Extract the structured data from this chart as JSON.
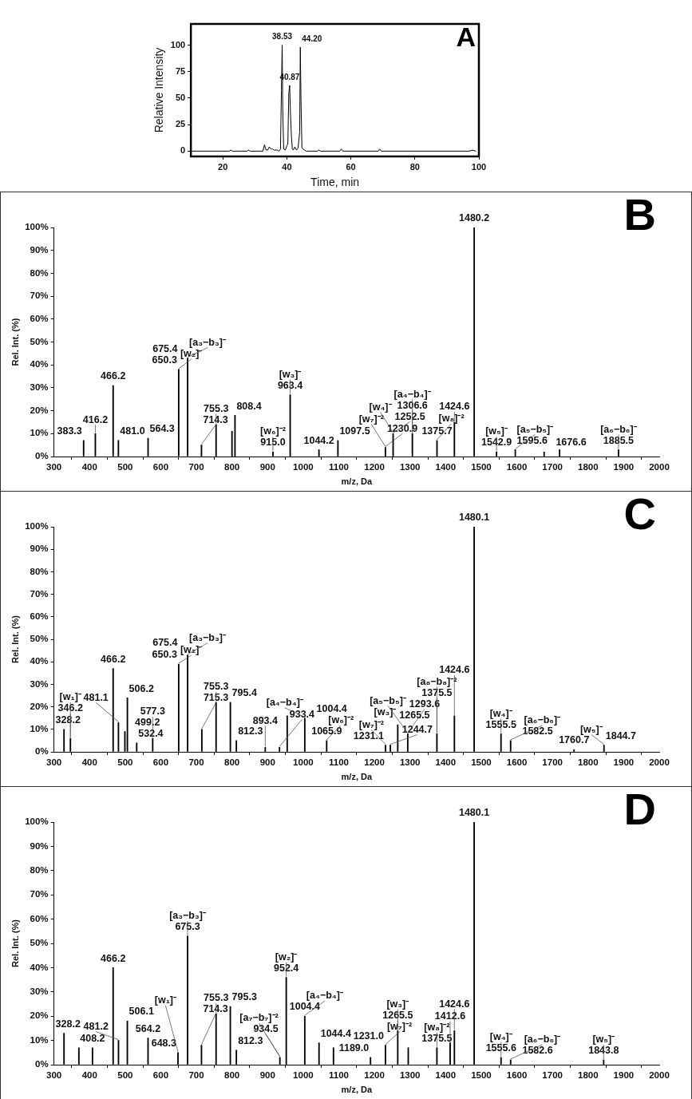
{
  "chart_data": [
    {
      "type": "line",
      "title": "A",
      "xlabel": "Time, min",
      "ylabel": "Relative Intensity",
      "color": "#000000",
      "grid": false,
      "x": [
        10,
        22,
        22.5,
        23,
        27.5,
        28,
        28.5,
        32.5,
        33,
        33.5,
        34,
        34.5,
        35,
        35.5,
        36,
        37,
        37.5,
        38,
        38.3,
        38.53,
        38.7,
        39,
        39.5,
        40,
        40.3,
        40.6,
        40.87,
        41.1,
        41.4,
        41.7,
        42,
        42.5,
        43,
        43.5,
        44,
        44.2,
        44.4,
        44.7,
        45.5,
        46,
        49.5,
        50,
        50.5,
        56.5,
        57,
        57.5,
        68.5,
        69,
        69.5,
        97,
        98,
        99
      ],
      "values": [
        0,
        0,
        1,
        0,
        0,
        1,
        0,
        0,
        6,
        1,
        1,
        4,
        2,
        2,
        1,
        1,
        0,
        2,
        58,
        100,
        40,
        2,
        1,
        5,
        7,
        55,
        62,
        37,
        15,
        2,
        1,
        4,
        1,
        3,
        18,
        98,
        50,
        3,
        1,
        0,
        0,
        1,
        0,
        0,
        2,
        0,
        0,
        2,
        0,
        0,
        1,
        0
      ],
      "xlim": [
        10,
        100
      ],
      "xticks": [
        20,
        40,
        60,
        80,
        100
      ],
      "ylim": [
        -5,
        120
      ],
      "yticks": [
        0,
        25,
        50,
        75,
        100
      ],
      "annotations": [
        {
          "text": "38.53",
          "x": 38.53,
          "y": 100
        },
        {
          "text": "40.87",
          "x": 40.87,
          "y": 62
        },
        {
          "text": "44.20",
          "x": 44.2,
          "y": 98
        }
      ]
    },
    {
      "type": "bar",
      "title": "B",
      "xlabel": "m/z, Da",
      "ylabel": "Rel. Int. (%)",
      "grid": false,
      "color": "#000000",
      "x": [
        383.3,
        416.2,
        466.2,
        481.0,
        564.3,
        650.3,
        675.4,
        714.3,
        755.3,
        800,
        808.4,
        915.0,
        963.4,
        1044.2,
        1097.5,
        1230.9,
        1252.5,
        1306.6,
        1375.7,
        1424.6,
        1480.2,
        1542.9,
        1595.6,
        1676.6,
        1720,
        1885.5
      ],
      "values": [
        7,
        10,
        31,
        7,
        8,
        38,
        43,
        5,
        14,
        11,
        18,
        2,
        27,
        3,
        7,
        4,
        10,
        10,
        7,
        15,
        100,
        2,
        3,
        2,
        3,
        3
      ],
      "xlim": [
        300,
        2000
      ],
      "xticks": [
        300,
        400,
        500,
        600,
        700,
        800,
        900,
        1000,
        1100,
        1200,
        1300,
        1400,
        1500,
        1600,
        1700,
        1800,
        1900,
        2000
      ],
      "ylim": [
        0,
        100
      ],
      "yticks": [
        {
          "value": 0,
          "label": "0%"
        },
        {
          "value": 10,
          "label": "10%"
        },
        {
          "value": 20,
          "label": "20%"
        },
        {
          "value": 30,
          "label": "30%"
        },
        {
          "value": 40,
          "label": "40%"
        },
        {
          "value": 50,
          "label": "50%"
        },
        {
          "value": 60,
          "label": "60%"
        },
        {
          "value": 70,
          "label": "70%"
        },
        {
          "value": 80,
          "label": "80%"
        },
        {
          "value": 90,
          "label": "90%"
        },
        {
          "value": 100,
          "label": "100%"
        }
      ],
      "annotations": [
        {
          "text": "383.3",
          "x": 383.3,
          "y": 7
        },
        {
          "text": "416.2",
          "x": 416.2,
          "y": 10
        },
        {
          "text": "466.2",
          "x": 466.2,
          "y": 31
        },
        {
          "text": "481.0",
          "x": 481.0,
          "y": 7
        },
        {
          "text": "564.3",
          "x": 564.3,
          "y": 8
        },
        {
          "text": "650.3",
          "x": 650.3,
          "y": 38
        },
        {
          "text": "675.4",
          "x": 675.4,
          "y": 43
        },
        {
          "text": "714.3",
          "x": 714.3,
          "y": 5
        },
        {
          "text": "755.3",
          "x": 755.3,
          "y": 14
        },
        {
          "text": "808.4",
          "x": 808.4,
          "y": 18
        },
        {
          "text": "915.0",
          "x": 915.0,
          "y": 2
        },
        {
          "text": "963.4",
          "x": 963.4,
          "y": 27
        },
        {
          "text": "1044.2",
          "x": 1044.2,
          "y": 3
        },
        {
          "text": "1097.5",
          "x": 1097.5,
          "y": 7
        },
        {
          "text": "1230.9",
          "x": 1230.9,
          "y": 4
        },
        {
          "text": "1252.5",
          "x": 1252.5,
          "y": 10
        },
        {
          "text": "1306.6",
          "x": 1306.6,
          "y": 10
        },
        {
          "text": "1375.7",
          "x": 1375.7,
          "y": 7
        },
        {
          "text": "1424.6",
          "x": 1424.6,
          "y": 15
        },
        {
          "text": "1480.2",
          "x": 1480.2,
          "y": 100
        },
        {
          "text": "1542.9",
          "x": 1542.9,
          "y": 2
        },
        {
          "text": "1595.6",
          "x": 1595.6,
          "y": 3
        },
        {
          "text": "1676.6",
          "x": 1676.6,
          "y": 2
        },
        {
          "text": "1885.5",
          "x": 1885.5,
          "y": 3
        },
        {
          "text": "[w₂]⁻",
          "x": 650.3,
          "y": 38
        },
        {
          "text": "[a₃−b₃]⁻",
          "x": 675.4,
          "y": 43
        },
        {
          "text": "[w₆]⁻²",
          "x": 915.0,
          "y": 2
        },
        {
          "text": "[w₃]⁻",
          "x": 963.4,
          "y": 27
        },
        {
          "text": "[w₇]⁻²",
          "x": 1230.9,
          "y": 4
        },
        {
          "text": "[w₄]⁻",
          "x": 1252.5,
          "y": 10
        },
        {
          "text": "[a₄−b₄]⁻",
          "x": 1306.6,
          "y": 10
        },
        {
          "text": "[w₈]⁻²",
          "x": 1375.7,
          "y": 7
        },
        {
          "text": "[w₅]⁻",
          "x": 1542.9,
          "y": 2
        },
        {
          "text": "[a₅−b₅]⁻",
          "x": 1595.6,
          "y": 3
        },
        {
          "text": "[a₆−b₆]⁻",
          "x": 1885.5,
          "y": 3
        }
      ]
    },
    {
      "type": "bar",
      "title": "C",
      "xlabel": "m/z, Da",
      "ylabel": "Rel. Int. (%)",
      "grid": false,
      "color": "#000000",
      "x": [
        328.2,
        346.2,
        466.2,
        481.1,
        499.2,
        506.2,
        532.4,
        577.3,
        650.3,
        675.4,
        715.3,
        755.3,
        795.4,
        812.3,
        893.4,
        933.4,
        955,
        1004.4,
        1065.9,
        1231.1,
        1244.7,
        1265.5,
        1293.6,
        1375.5,
        1424.6,
        1480.1,
        1555.5,
        1582.5,
        1760.7,
        1844.7
      ],
      "values": [
        10,
        6,
        37,
        13,
        9,
        24,
        4,
        6,
        39,
        43,
        10,
        22,
        22,
        5,
        2,
        2,
        16,
        15,
        5,
        3,
        3,
        12,
        8,
        8,
        16,
        100,
        8,
        5,
        1,
        3
      ],
      "xlim": [
        300,
        2000
      ],
      "xticks": [
        300,
        400,
        500,
        600,
        700,
        800,
        900,
        1000,
        1100,
        1200,
        1300,
        1400,
        1500,
        1600,
        1700,
        1800,
        1900,
        2000
      ],
      "ylim": [
        0,
        100
      ],
      "yticks": [
        {
          "value": 0,
          "label": "0%"
        },
        {
          "value": 10,
          "label": "10%"
        },
        {
          "value": 20,
          "label": "20%"
        },
        {
          "value": 30,
          "label": "30%"
        },
        {
          "value": 40,
          "label": "40%"
        },
        {
          "value": 50,
          "label": "50%"
        },
        {
          "value": 60,
          "label": "60%"
        },
        {
          "value": 70,
          "label": "70%"
        },
        {
          "value": 80,
          "label": "80%"
        },
        {
          "value": 90,
          "label": "90%"
        },
        {
          "value": 100,
          "label": "100%"
        }
      ],
      "annotations": [
        {
          "text": "328.2",
          "x": 328.2,
          "y": 10
        },
        {
          "text": "346.2",
          "x": 346.2,
          "y": 6
        },
        {
          "text": "466.2",
          "x": 466.2,
          "y": 37
        },
        {
          "text": "481.1",
          "x": 481.1,
          "y": 13
        },
        {
          "text": "499.2",
          "x": 499.2,
          "y": 9
        },
        {
          "text": "506.2",
          "x": 506.2,
          "y": 24
        },
        {
          "text": "532.4",
          "x": 532.4,
          "y": 4
        },
        {
          "text": "577.3",
          "x": 577.3,
          "y": 6
        },
        {
          "text": "650.3",
          "x": 650.3,
          "y": 39
        },
        {
          "text": "675.4",
          "x": 675.4,
          "y": 43
        },
        {
          "text": "715.3",
          "x": 715.3,
          "y": 10
        },
        {
          "text": "755.3",
          "x": 755.3,
          "y": 22
        },
        {
          "text": "795.4",
          "x": 795.4,
          "y": 22
        },
        {
          "text": "812.3",
          "x": 812.3,
          "y": 5
        },
        {
          "text": "893.4",
          "x": 893.4,
          "y": 2
        },
        {
          "text": "933.4",
          "x": 933.4,
          "y": 2
        },
        {
          "text": "1004.4",
          "x": 1004.4,
          "y": 15
        },
        {
          "text": "1065.9",
          "x": 1065.9,
          "y": 5
        },
        {
          "text": "1231.1",
          "x": 1231.1,
          "y": 3
        },
        {
          "text": "1244.7",
          "x": 1244.7,
          "y": 3
        },
        {
          "text": "1265.5",
          "x": 1265.5,
          "y": 12
        },
        {
          "text": "1293.6",
          "x": 1293.6,
          "y": 8
        },
        {
          "text": "1375.5",
          "x": 1375.5,
          "y": 8
        },
        {
          "text": "1424.6",
          "x": 1424.6,
          "y": 16
        },
        {
          "text": "1480.1",
          "x": 1480.1,
          "y": 100
        },
        {
          "text": "1555.5",
          "x": 1555.5,
          "y": 8
        },
        {
          "text": "1582.5",
          "x": 1582.5,
          "y": 5
        },
        {
          "text": "1760.7",
          "x": 1760.7,
          "y": 1
        },
        {
          "text": "1844.7",
          "x": 1844.7,
          "y": 3
        },
        {
          "text": "[w₁]⁻",
          "x": 346.2,
          "y": 6
        },
        {
          "text": "[w₂]⁻",
          "x": 650.3,
          "y": 39
        },
        {
          "text": "[a₃−b₃]⁻",
          "x": 675.4,
          "y": 43
        },
        {
          "text": "[a₄−b₄]⁻",
          "x": 1004.4,
          "y": 15
        },
        {
          "text": "[w₆]⁻²",
          "x": 1065.9,
          "y": 5
        },
        {
          "text": "[w₇]⁻²",
          "x": 1231.1,
          "y": 3
        },
        {
          "text": "[w₃]⁻",
          "x": 1265.5,
          "y": 12
        },
        {
          "text": "[a₅−b₅]⁻",
          "x": 1293.6,
          "y": 8
        },
        {
          "text": "[a₈−b₈]⁻²",
          "x": 1375.5,
          "y": 8
        },
        {
          "text": "[w₄]⁻",
          "x": 1555.5,
          "y": 8
        },
        {
          "text": "[a₆−b₆]⁻",
          "x": 1582.5,
          "y": 5
        },
        {
          "text": "[w₅]⁻",
          "x": 1844.7,
          "y": 3
        }
      ]
    },
    {
      "type": "bar",
      "title": "D",
      "xlabel": "m/z, Da",
      "ylabel": "Rel. Int. (%)",
      "grid": false,
      "color": "#000000",
      "x": [
        328.2,
        370,
        408.2,
        466.2,
        481.2,
        506.1,
        564.2,
        648.3,
        675.3,
        714.3,
        755.3,
        795.3,
        812.3,
        934.5,
        952.4,
        1004.4,
        1044.4,
        1085,
        1189.0,
        1231.0,
        1265.5,
        1295,
        1375.5,
        1412.6,
        1424.6,
        1480.1,
        1555.6,
        1582.6,
        1843.8
      ],
      "values": [
        13,
        7,
        7,
        40,
        10,
        18,
        11,
        5,
        53,
        8,
        21,
        24,
        6,
        3,
        36,
        20,
        9,
        7,
        3,
        8,
        14,
        7,
        7,
        9,
        14,
        100,
        3,
        2,
        2
      ],
      "xlim": [
        300,
        2000
      ],
      "xticks": [
        300,
        400,
        500,
        600,
        700,
        800,
        900,
        1000,
        1100,
        1200,
        1300,
        1400,
        1500,
        1600,
        1700,
        1800,
        1900,
        2000
      ],
      "ylim": [
        0,
        100
      ],
      "yticks": [
        {
          "value": 0,
          "label": "0%"
        },
        {
          "value": 10,
          "label": "10%"
        },
        {
          "value": 20,
          "label": "20%"
        },
        {
          "value": 30,
          "label": "30%"
        },
        {
          "value": 40,
          "label": "40%"
        },
        {
          "value": 50,
          "label": "50%"
        },
        {
          "value": 60,
          "label": "60%"
        },
        {
          "value": 70,
          "label": "70%"
        },
        {
          "value": 80,
          "label": "80%"
        },
        {
          "value": 90,
          "label": "90%"
        },
        {
          "value": 100,
          "label": "100%"
        }
      ],
      "annotations": [
        {
          "text": "328.2",
          "x": 328.2,
          "y": 13
        },
        {
          "text": "408.2",
          "x": 408.2,
          "y": 7
        },
        {
          "text": "466.2",
          "x": 466.2,
          "y": 40
        },
        {
          "text": "481.2",
          "x": 481.2,
          "y": 10
        },
        {
          "text": "506.1",
          "x": 506.1,
          "y": 18
        },
        {
          "text": "564.2",
          "x": 564.2,
          "y": 11
        },
        {
          "text": "648.3",
          "x": 648.3,
          "y": 5
        },
        {
          "text": "675.3",
          "x": 675.3,
          "y": 53
        },
        {
          "text": "714.3",
          "x": 714.3,
          "y": 8
        },
        {
          "text": "755.3",
          "x": 755.3,
          "y": 21
        },
        {
          "text": "795.3",
          "x": 795.3,
          "y": 24
        },
        {
          "text": "812.3",
          "x": 812.3,
          "y": 6
        },
        {
          "text": "934.5",
          "x": 934.5,
          "y": 3
        },
        {
          "text": "952.4",
          "x": 952.4,
          "y": 36
        },
        {
          "text": "1004.4",
          "x": 1004.4,
          "y": 20
        },
        {
          "text": "1044.4",
          "x": 1044.4,
          "y": 9
        },
        {
          "text": "1189.0",
          "x": 1189.0,
          "y": 3
        },
        {
          "text": "1231.0",
          "x": 1231.0,
          "y": 8
        },
        {
          "text": "1265.5",
          "x": 1265.5,
          "y": 14
        },
        {
          "text": "1375.5",
          "x": 1375.5,
          "y": 7
        },
        {
          "text": "1412.6",
          "x": 1412.6,
          "y": 9
        },
        {
          "text": "1424.6",
          "x": 1424.6,
          "y": 14
        },
        {
          "text": "1480.1",
          "x": 1480.1,
          "y": 100
        },
        {
          "text": "1555.6",
          "x": 1555.6,
          "y": 3
        },
        {
          "text": "1582.6",
          "x": 1582.6,
          "y": 2
        },
        {
          "text": "1843.8",
          "x": 1843.8,
          "y": 2
        },
        {
          "text": "[w₁]⁻",
          "x": 648.3,
          "y": 5
        },
        {
          "text": "[a₃−b₃]⁻",
          "x": 675.3,
          "y": 53
        },
        {
          "text": "[a₇−b₇]⁻²",
          "x": 934.5,
          "y": 3
        },
        {
          "text": "[w₂]⁻",
          "x": 952.4,
          "y": 36
        },
        {
          "text": "[a₄−b₄]⁻",
          "x": 1004.4,
          "y": 20
        },
        {
          "text": "[w₇]⁻²",
          "x": 1231.0,
          "y": 8
        },
        {
          "text": "[w₃]⁻",
          "x": 1265.5,
          "y": 14
        },
        {
          "text": "[w₈]⁻²",
          "x": 1375.5,
          "y": 7
        },
        {
          "text": "[w₄]⁻",
          "x": 1555.6,
          "y": 3
        },
        {
          "text": "[a₆−b₆]⁻",
          "x": 1582.6,
          "y": 2
        },
        {
          "text": "[w₅]⁻",
          "x": 1843.8,
          "y": 2
        }
      ]
    }
  ]
}
